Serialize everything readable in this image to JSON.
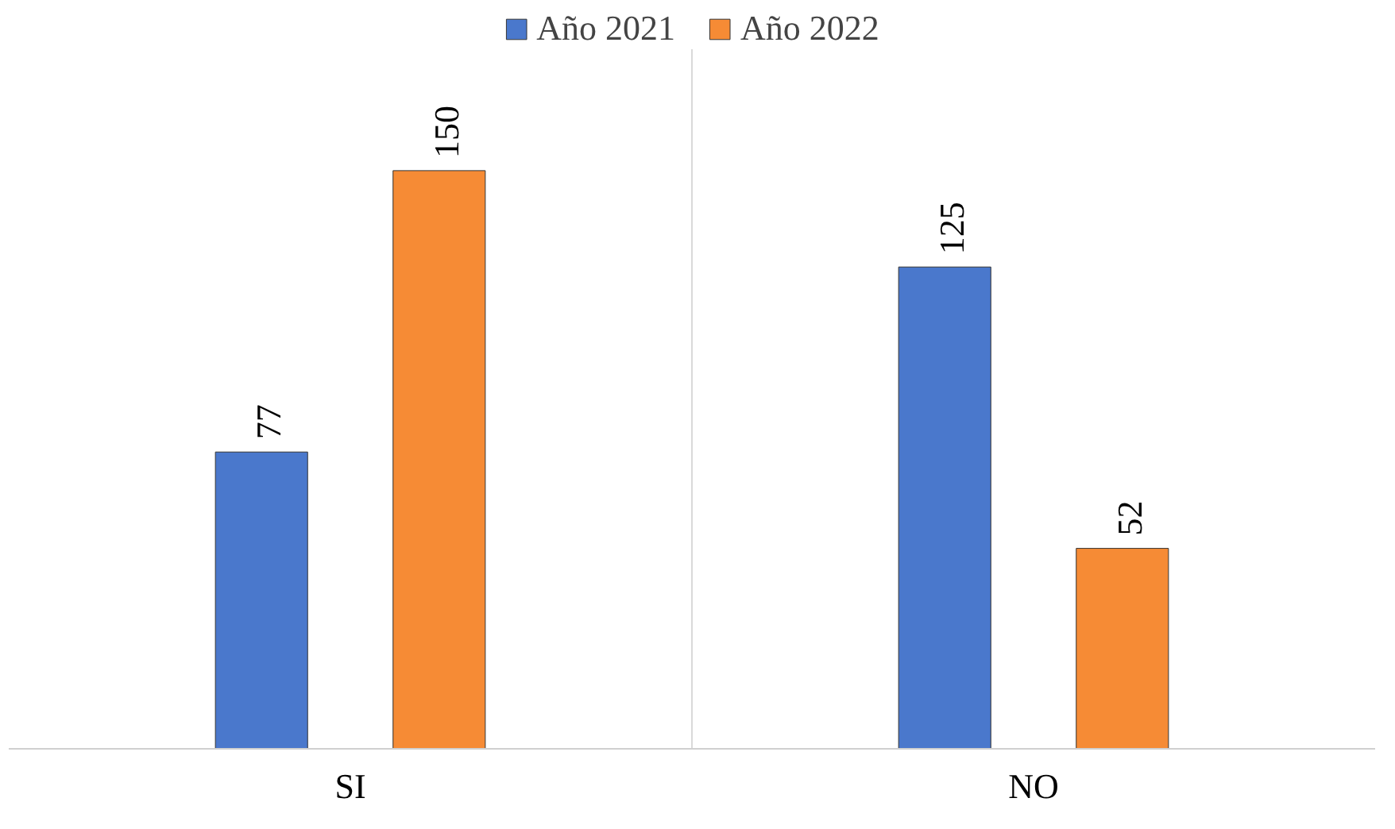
{
  "chart_data": {
    "type": "bar",
    "categories": [
      "SI",
      "NO"
    ],
    "series": [
      {
        "name": "Año 2021",
        "color": "#4a78cc",
        "values": [
          77,
          125
        ]
      },
      {
        "name": "Año 2022",
        "color": "#f68b35",
        "values": [
          150,
          52
        ]
      }
    ],
    "data_labels": true,
    "legend": "top",
    "grid": "x"
  }
}
